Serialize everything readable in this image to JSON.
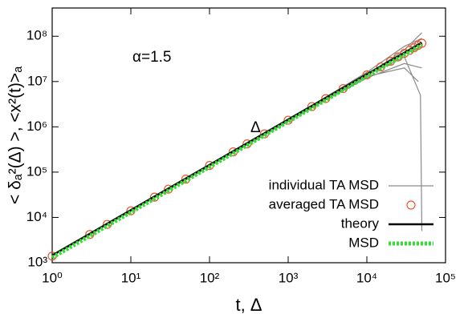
{
  "chart_data": {
    "type": "line",
    "xlabel": "t, Δ",
    "ylabel": "< δₐ²(Δ) >, <x²(t)>ₐ",
    "annotations": [
      "α=1.5",
      "Δ"
    ],
    "log_x": true,
    "log_y": true,
    "xlim": [
      1,
      100000
    ],
    "ylim": [
      1000,
      420000000
    ],
    "xticks": [
      {
        "value": 1,
        "label": "10⁰"
      },
      {
        "value": 10,
        "label": "10¹"
      },
      {
        "value": 100,
        "label": "10²"
      },
      {
        "value": 1000,
        "label": "10³"
      },
      {
        "value": 10000,
        "label": "10⁴"
      },
      {
        "value": 100000,
        "label": "10⁵"
      }
    ],
    "yticks": [
      {
        "value": 1000,
        "label": "10³"
      },
      {
        "value": 10000,
        "label": "10⁴"
      },
      {
        "value": 100000,
        "label": "10⁵"
      },
      {
        "value": 1000000,
        "label": "10⁶"
      },
      {
        "value": 10000000,
        "label": "10⁷"
      },
      {
        "value": 100000000,
        "label": "10⁸"
      }
    ],
    "legend": "right",
    "series": [
      {
        "name": "individual TA MSD",
        "color": "#8a8a8a",
        "style": "line",
        "x": [
          1,
          100,
          1000,
          10000,
          30000,
          50000,
          null,
          1,
          1000,
          10000,
          30000,
          50000,
          null,
          1,
          1000,
          10000,
          30000,
          50000,
          null,
          1,
          1000,
          10000,
          30000,
          45000,
          null,
          1,
          1000,
          10000,
          30000,
          48000,
          50000,
          null,
          1,
          1000,
          10000,
          30000,
          50000
        ],
        "values": [
          1400,
          140000,
          1400000,
          14000000,
          50000000,
          120000000,
          null,
          1400,
          1400000,
          12000000,
          25000000,
          20000000,
          null,
          1400,
          1500000,
          15000000,
          40000000,
          60000000,
          null,
          1400,
          1300000,
          13000000,
          20000000,
          10000000,
          null,
          1400,
          1400000,
          14000000,
          35000000,
          5000000,
          5000,
          null,
          1400,
          1450000,
          16000000,
          60000000,
          90000000
        ]
      },
      {
        "name": "averaged TA MSD",
        "color": "#e8562a",
        "style": "points",
        "x": [
          1,
          3,
          5,
          10,
          20,
          30,
          50,
          100,
          200,
          300,
          500,
          1000,
          2000,
          3000,
          5000,
          10000,
          15000,
          20000,
          25000,
          30000,
          35000,
          40000,
          45000,
          50000
        ],
        "values": [
          1400,
          4200,
          7000,
          14000,
          28000,
          42000,
          70000,
          140000,
          280000,
          420000,
          700000,
          1400000,
          2800000,
          4200000,
          7000000,
          14000000,
          21000000,
          28000000,
          35000000,
          42000000,
          49000000,
          56000000,
          63000000,
          70000000
        ]
      },
      {
        "name": "theory",
        "color": "#000000",
        "style": "line-thick",
        "x": [
          1,
          50000
        ],
        "values": [
          1450,
          72000000
        ]
      },
      {
        "name": "MSD",
        "color": "#33dd33",
        "style": "dashed",
        "x": [
          1,
          10,
          100,
          1000,
          10000,
          50000
        ],
        "values": [
          1300,
          13000,
          130000,
          1300000,
          13000000,
          65000000
        ]
      }
    ]
  }
}
